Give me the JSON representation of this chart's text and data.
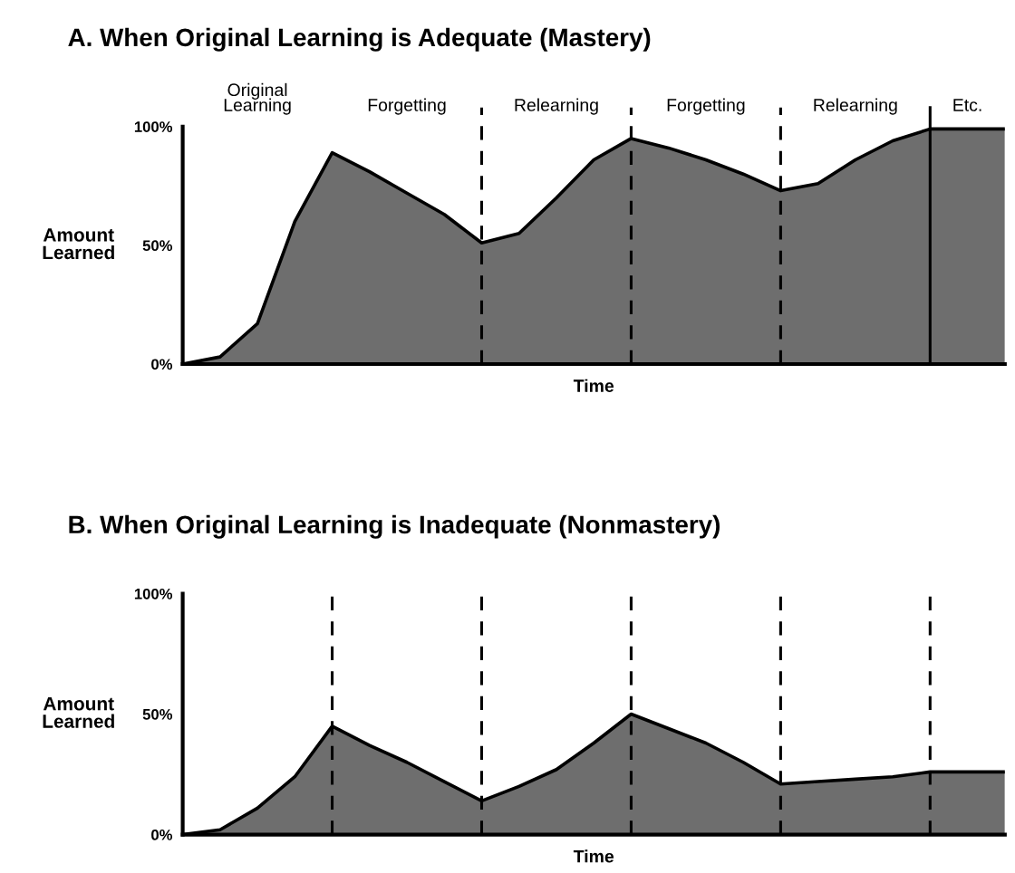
{
  "chart_data": [
    {
      "type": "area",
      "title": "A. When Original Learning is Adequate (Mastery)",
      "xlabel": "Time",
      "ylabel": "Amount\nLearned",
      "ylim": [
        0,
        100
      ],
      "yticks": [
        {
          "value": 0,
          "label": "0%"
        },
        {
          "value": 50,
          "label": "50%"
        },
        {
          "value": 100,
          "label": "100%"
        }
      ],
      "tick_labels": "y",
      "grid": "x",
      "categories": [
        null,
        null,
        null,
        null,
        null,
        null,
        null,
        null,
        null,
        null,
        null,
        null,
        null,
        null,
        null,
        null,
        null,
        null,
        null,
        null,
        null,
        null,
        null
      ],
      "series": [
        {
          "color": "#6e6e6e",
          "values": [
            0,
            3,
            17,
            60,
            89,
            81,
            72,
            63,
            51,
            55,
            70,
            86,
            95,
            91,
            86,
            80,
            73,
            76,
            86,
            94,
            99,
            99,
            99
          ]
        }
      ],
      "annotations": [
        "Original\nLearning",
        "Forgetting",
        "Relearning",
        "Forgetting",
        "Relearning",
        "Etc."
      ]
    },
    {
      "type": "area",
      "title": "B. When Original Learning is Inadequate (Nonmastery)",
      "xlabel": "Time",
      "ylabel": "Amount\nLearned",
      "ylim": [
        0,
        100
      ],
      "yticks": [
        {
          "value": 0,
          "label": "0%"
        },
        {
          "value": 50,
          "label": "50%"
        },
        {
          "value": 100,
          "label": "100%"
        }
      ],
      "tick_labels": "y",
      "grid": "x",
      "categories": [
        null,
        null,
        null,
        null,
        null,
        null,
        null,
        null,
        null,
        null,
        null,
        null,
        null,
        null,
        null,
        null,
        null,
        null,
        null,
        null,
        null,
        null,
        null
      ],
      "series": [
        {
          "color": "#6e6e6e",
          "values": [
            0,
            2,
            11,
            24,
            45,
            37,
            30,
            22,
            14,
            20,
            27,
            38,
            50,
            44,
            38,
            30,
            21,
            22,
            23,
            24,
            26,
            26,
            26
          ]
        }
      ]
    }
  ]
}
